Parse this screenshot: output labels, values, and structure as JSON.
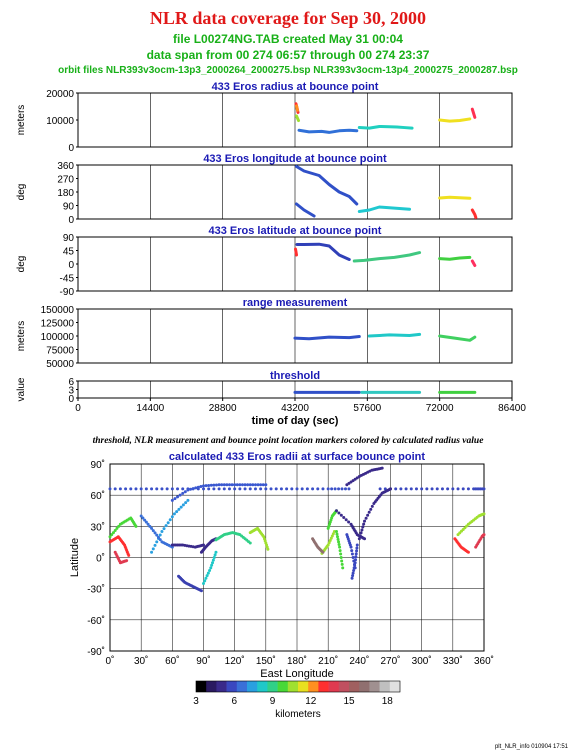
{
  "title": "NLR data coverage for Sep 30, 2000",
  "file_line": "file L00274NG.TAB created May 31 00:04",
  "span_line": "data span from 00 274 06:57 through 00 274 23:37",
  "orbit_line": "orbit files NLR393v3ocm-13p3_2000264_2000275.bsp NLR393v3ocm-13p4_2000275_2000287.bsp",
  "caption": "threshold, NLR measurement and bounce point location markers colored by calculated radius value",
  "stamp": "plt_NLR_info 010904 17:51",
  "colors": {
    "title": "#e01818",
    "subtitle": "#18b018",
    "panel_title": "#1a1ab4"
  },
  "chart_data": [
    {
      "type": "scatter",
      "title": "433 Eros radius at bounce point",
      "ylabel": "meters",
      "ylim": [
        0,
        20000
      ],
      "yticks": [
        "20000",
        "10000",
        "0"
      ],
      "xlim": [
        0,
        86400
      ],
      "series": [
        {
          "color": "#ff3030",
          "x": [
            43400,
            43600,
            43800
          ],
          "y": [
            16000,
            14500,
            12800
          ]
        },
        {
          "color": "#ff9020",
          "x": [
            43500,
            43700
          ],
          "y": [
            15200,
            13600
          ]
        },
        {
          "color": "#a0e030",
          "x": [
            43500,
            43900
          ],
          "y": [
            11500,
            9800
          ]
        },
        {
          "color": "#3070d8",
          "x": [
            44000,
            46000,
            48500,
            50000,
            52000,
            54000,
            55500
          ],
          "y": [
            6200,
            5600,
            5800,
            5400,
            6000,
            6200,
            6000
          ]
        },
        {
          "color": "#20d0c0",
          "x": [
            56000,
            58000,
            60000,
            62000,
            63500,
            65000,
            66500
          ],
          "y": [
            7200,
            7000,
            7600,
            7500,
            7400,
            7200,
            7000
          ]
        },
        {
          "color": "#f0e020",
          "x": [
            72000,
            74000,
            76000,
            78000
          ],
          "y": [
            10000,
            9600,
            9800,
            10400
          ]
        },
        {
          "color": "#ff3050",
          "x": [
            78500,
            79000
          ],
          "y": [
            14000,
            11000
          ]
        }
      ]
    },
    {
      "type": "scatter",
      "title": "433 Eros longitude at bounce point",
      "ylabel": "deg",
      "ylim": [
        0,
        360
      ],
      "yticks": [
        "360",
        "270",
        "180",
        "90",
        "0"
      ],
      "xlim": [
        0,
        86400
      ],
      "series": [
        {
          "color": "#3050c8",
          "x": [
            43500,
            45000,
            48000,
            50000,
            52000,
            54000,
            55500
          ],
          "y": [
            350,
            320,
            290,
            230,
            180,
            150,
            100
          ]
        },
        {
          "color": "#3050c8",
          "x": [
            43500,
            45000,
            47000
          ],
          "y": [
            100,
            60,
            20
          ]
        },
        {
          "color": "#20c8d0",
          "x": [
            56000,
            58000,
            60000,
            62000,
            64000,
            66000
          ],
          "y": [
            50,
            60,
            80,
            75,
            70,
            65
          ]
        },
        {
          "color": "#f0e020",
          "x": [
            72000,
            74000,
            76000,
            78000
          ],
          "y": [
            140,
            145,
            142,
            138
          ]
        },
        {
          "color": "#ff3030",
          "x": [
            78500,
            79000,
            79200
          ],
          "y": [
            60,
            30,
            10
          ]
        }
      ]
    },
    {
      "type": "scatter",
      "title": "433 Eros latitude at bounce point",
      "ylabel": "deg",
      "ylim": [
        -90,
        90
      ],
      "yticks": [
        "90",
        "45",
        "0",
        "-45",
        "-90"
      ],
      "xlim": [
        0,
        86400
      ],
      "series": [
        {
          "color": "#ff3030",
          "x": [
            43300,
            43500
          ],
          "y": [
            50,
            30
          ]
        },
        {
          "color": "#3040b8",
          "x": [
            43600,
            45000,
            48000,
            50000,
            52000,
            54000
          ],
          "y": [
            65,
            65,
            66,
            60,
            30,
            15
          ]
        },
        {
          "color": "#40c880",
          "x": [
            55000,
            57000,
            60000,
            63000,
            66000,
            68000
          ],
          "y": [
            10,
            12,
            18,
            22,
            30,
            38
          ]
        },
        {
          "color": "#40d040",
          "x": [
            72000,
            74000,
            76000,
            78000
          ],
          "y": [
            18,
            16,
            20,
            22
          ]
        },
        {
          "color": "#ff3060",
          "x": [
            78500,
            79000
          ],
          "y": [
            10,
            -5
          ]
        }
      ]
    },
    {
      "type": "scatter",
      "title": "range measurement",
      "ylabel": "meters",
      "ylim": [
        50000,
        150000
      ],
      "yticks": [
        "150000",
        "125000",
        "100000",
        "75000",
        "50000"
      ],
      "xlim": [
        0,
        86400
      ],
      "series": [
        {
          "color": "#3050c8",
          "x": [
            43200,
            46000,
            50000,
            54000,
            56000
          ],
          "y": [
            96000,
            95000,
            98000,
            97000,
            99000
          ]
        },
        {
          "color": "#20c8c8",
          "x": [
            58000,
            62000,
            66000,
            68000
          ],
          "y": [
            100000,
            102000,
            101000,
            103000
          ]
        },
        {
          "color": "#40d060",
          "x": [
            72000,
            75000,
            78000,
            79000
          ],
          "y": [
            100000,
            96000,
            92000,
            98000
          ]
        }
      ]
    },
    {
      "type": "scatter",
      "title": "threshold",
      "ylabel": "value",
      "ylim": [
        0,
        6
      ],
      "yticks": [
        "6",
        "3",
        "0"
      ],
      "xlim": [
        0,
        86400
      ],
      "xticks": [
        "0",
        "14400",
        "28800",
        "43200",
        "57600",
        "72000",
        "86400"
      ],
      "xlabel": "time of day (sec)",
      "series": [
        {
          "color": "#3050c8",
          "x": [
            43200,
            50000,
            56000
          ],
          "y": [
            2,
            2,
            2
          ]
        },
        {
          "color": "#30c8c0",
          "x": [
            56500,
            62000,
            68000
          ],
          "y": [
            2,
            2,
            2
          ]
        },
        {
          "color": "#40d040",
          "x": [
            72000,
            76000,
            79000
          ],
          "y": [
            2,
            2,
            2
          ]
        }
      ]
    },
    {
      "type": "scatter",
      "title": "calculated 433 Eros radii at surface bounce point",
      "xlabel": "East Longitude",
      "ylabel": "Latitude",
      "xlim": [
        0,
        360
      ],
      "ylim": [
        -90,
        90
      ],
      "xticks": [
        "0˚",
        "30˚",
        "60˚",
        "90˚",
        "120˚",
        "150˚",
        "180˚",
        "210˚",
        "240˚",
        "270˚",
        "300˚",
        "330˚",
        "360˚"
      ],
      "yticks": [
        "90˚",
        "60˚",
        "30˚",
        "0˚",
        "-30˚",
        "-60˚",
        "-90˚"
      ],
      "colorbar": {
        "label": "kilometers",
        "ticks": [
          "3",
          "6",
          "9",
          "12",
          "15",
          "18"
        ],
        "range": [
          3,
          19
        ],
        "colors": [
          "#000000",
          "#2a1a60",
          "#3a2a8a",
          "#3a48c0",
          "#3a70d8",
          "#2aa0e0",
          "#20c8c8",
          "#30d088",
          "#48d838",
          "#a0e030",
          "#e8e020",
          "#ff9020",
          "#ff3030",
          "#e03a50",
          "#c05060",
          "#a06060",
          "#907070",
          "#a09090",
          "#c0c0c0",
          "#e0e0e0"
        ]
      },
      "series": [
        {
          "color": "#3a50c8",
          "x": [
            0,
            30,
            60,
            90,
            120,
            150,
            180,
            210,
            230
          ],
          "y": [
            66,
            66,
            66,
            66,
            66,
            66,
            66,
            66,
            66
          ]
        },
        {
          "color": "#3a48c0",
          "x": [
            260,
            290,
            320,
            350,
            360
          ],
          "y": [
            66,
            66,
            66,
            66,
            66
          ]
        },
        {
          "color": "#3a58d0",
          "x": [
            60,
            75,
            90,
            105,
            120,
            135,
            150
          ],
          "y": [
            55,
            65,
            69,
            70,
            70,
            70,
            70
          ]
        },
        {
          "color": "#2aa0e0",
          "x": [
            40,
            50,
            62,
            75
          ],
          "y": [
            5,
            25,
            42,
            55
          ]
        },
        {
          "color": "#3a40b0",
          "x": [
            66,
            72,
            80,
            88
          ],
          "y": [
            -18,
            -24,
            -28,
            -32
          ]
        },
        {
          "color": "#48d838",
          "x": [
            0,
            10,
            20,
            25
          ],
          "y": [
            20,
            32,
            38,
            30
          ]
        },
        {
          "color": "#ff3030",
          "x": [
            0,
            8,
            14,
            18
          ],
          "y": [
            15,
            20,
            12,
            2
          ]
        },
        {
          "color": "#e03a50",
          "x": [
            5,
            10,
            16
          ],
          "y": [
            5,
            -5,
            -3
          ]
        },
        {
          "color": "#3a70d8",
          "x": [
            30,
            40,
            50,
            60
          ],
          "y": [
            40,
            28,
            15,
            10
          ]
        },
        {
          "color": "#3a2a8a",
          "x": [
            60,
            70,
            82,
            90
          ],
          "y": [
            12,
            12,
            10,
            12
          ]
        },
        {
          "color": "#3a2a8a",
          "x": [
            88,
            92,
            98,
            102
          ],
          "y": [
            5,
            10,
            16,
            18
          ]
        },
        {
          "color": "#30d088",
          "x": [
            102,
            110,
            118,
            125,
            135
          ],
          "y": [
            17,
            22,
            24,
            22,
            14
          ]
        },
        {
          "color": "#20c8c8",
          "x": [
            90,
            97,
            102
          ],
          "y": [
            -25,
            -10,
            5
          ]
        },
        {
          "color": "#a0e030",
          "x": [
            135,
            142,
            148,
            152
          ],
          "y": [
            24,
            28,
            20,
            8
          ]
        },
        {
          "color": "#48d838",
          "x": [
            210,
            214,
            218
          ],
          "y": [
            28,
            40,
            45
          ]
        },
        {
          "color": "#a0e030",
          "x": [
            204,
            210,
            216
          ],
          "y": [
            4,
            12,
            25
          ]
        },
        {
          "color": "#907070",
          "x": [
            195,
            200,
            205
          ],
          "y": [
            18,
            10,
            5
          ]
        },
        {
          "color": "#3a2a8a",
          "x": [
            218,
            232,
            238,
            245
          ],
          "y": [
            45,
            32,
            22,
            18
          ]
        },
        {
          "color": "#3a2a8a",
          "x": [
            228,
            240,
            252,
            262
          ],
          "y": [
            70,
            78,
            84,
            86
          ]
        },
        {
          "color": "#3a2a8a",
          "x": [
            240,
            245,
            254,
            262,
            270
          ],
          "y": [
            18,
            35,
            52,
            62,
            66
          ]
        },
        {
          "color": "#48d838",
          "x": [
            218,
            221,
            224
          ],
          "y": [
            25,
            10,
            -10
          ]
        },
        {
          "color": "#3a48c0",
          "x": [
            228,
            232,
            236
          ],
          "y": [
            22,
            10,
            -10
          ]
        },
        {
          "color": "#3a48c0",
          "x": [
            238,
            236,
            233
          ],
          "y": [
            12,
            -5,
            -20
          ]
        },
        {
          "color": "#a0e030",
          "x": [
            335,
            345,
            355,
            360
          ],
          "y": [
            22,
            32,
            40,
            42
          ]
        },
        {
          "color": "#ff3030",
          "x": [
            332,
            338,
            345
          ],
          "y": [
            18,
            10,
            5
          ]
        },
        {
          "color": "#e03a50",
          "x": [
            352,
            358,
            360
          ],
          "y": [
            10,
            20,
            22
          ]
        }
      ]
    }
  ]
}
